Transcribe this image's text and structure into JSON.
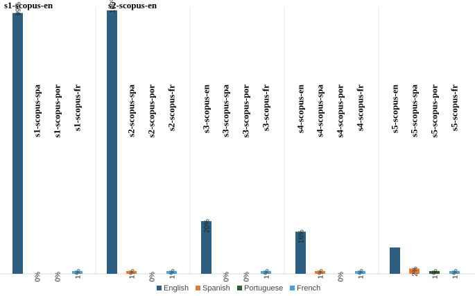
{
  "chart_data": {
    "type": "bar",
    "legend_position": "bottom",
    "series": [
      {
        "name": "English",
        "color": "#2e5f80"
      },
      {
        "name": "Spanish",
        "color": "#e07b39"
      },
      {
        "name": "Portuguese",
        "color": "#2f5f2f"
      },
      {
        "name": "French",
        "color": "#4aa3d8"
      }
    ],
    "groups": [
      {
        "bars": [
          {
            "label": "s1-scopus-en",
            "series": "English",
            "value": 99,
            "value_label": "99%"
          },
          {
            "label": "s1-scopus-spa",
            "series": "Spanish",
            "value": 0,
            "value_label": "0%"
          },
          {
            "label": "s1-scopus-por",
            "series": "Portuguese",
            "value": 0,
            "value_label": "0%"
          },
          {
            "label": "s1-scopus-fr",
            "series": "French",
            "value": 1,
            "value_label": "1%"
          }
        ]
      },
      {
        "bars": [
          {
            "label": "s2-scopus-en",
            "series": "English",
            "value": 100,
            "value_label": "100%"
          },
          {
            "label": "s2-scopus-spa",
            "series": "Spanish",
            "value": 1,
            "value_label": "1%"
          },
          {
            "label": "s2-scopus-por",
            "series": "Portuguese",
            "value": 0,
            "value_label": "0%"
          },
          {
            "label": "s2-scopus-fr",
            "series": "French",
            "value": 1,
            "value_label": "1%"
          }
        ]
      },
      {
        "bars": [
          {
            "label": "s3-scopus-en",
            "series": "English",
            "value": 20,
            "value_label": "20%"
          },
          {
            "label": "s3-scopus-spa",
            "series": "Spanish",
            "value": 0,
            "value_label": "0%"
          },
          {
            "label": "s3-scopus-por",
            "series": "Portuguese",
            "value": 0,
            "value_label": "0%"
          },
          {
            "label": "s3-scopus-fr",
            "series": "French",
            "value": 1,
            "value_label": "1%"
          }
        ]
      },
      {
        "bars": [
          {
            "label": "s4-scopus-en",
            "series": "English",
            "value": 16,
            "value_label": "16%"
          },
          {
            "label": "s4-scopus-spa",
            "series": "Spanish",
            "value": 1,
            "value_label": "1%"
          },
          {
            "label": "s4-scopus-por",
            "series": "Portuguese",
            "value": 0,
            "value_label": "0%"
          },
          {
            "label": "s4-scopus-fr",
            "series": "French",
            "value": 1,
            "value_label": "1%"
          }
        ]
      },
      {
        "bars": [
          {
            "label": "s5-scopus-en",
            "series": "English",
            "value": 10,
            "value_label": ""
          },
          {
            "label": "s5-scopus-spa",
            "series": "Spanish",
            "value": 2,
            "value_label": "2%"
          },
          {
            "label": "s5-scopus-por",
            "series": "Portuguese",
            "value": 1,
            "value_label": "1%"
          },
          {
            "label": "s5-scopus-fr",
            "series": "French",
            "value": 1,
            "value_label": "1%"
          }
        ]
      }
    ]
  }
}
